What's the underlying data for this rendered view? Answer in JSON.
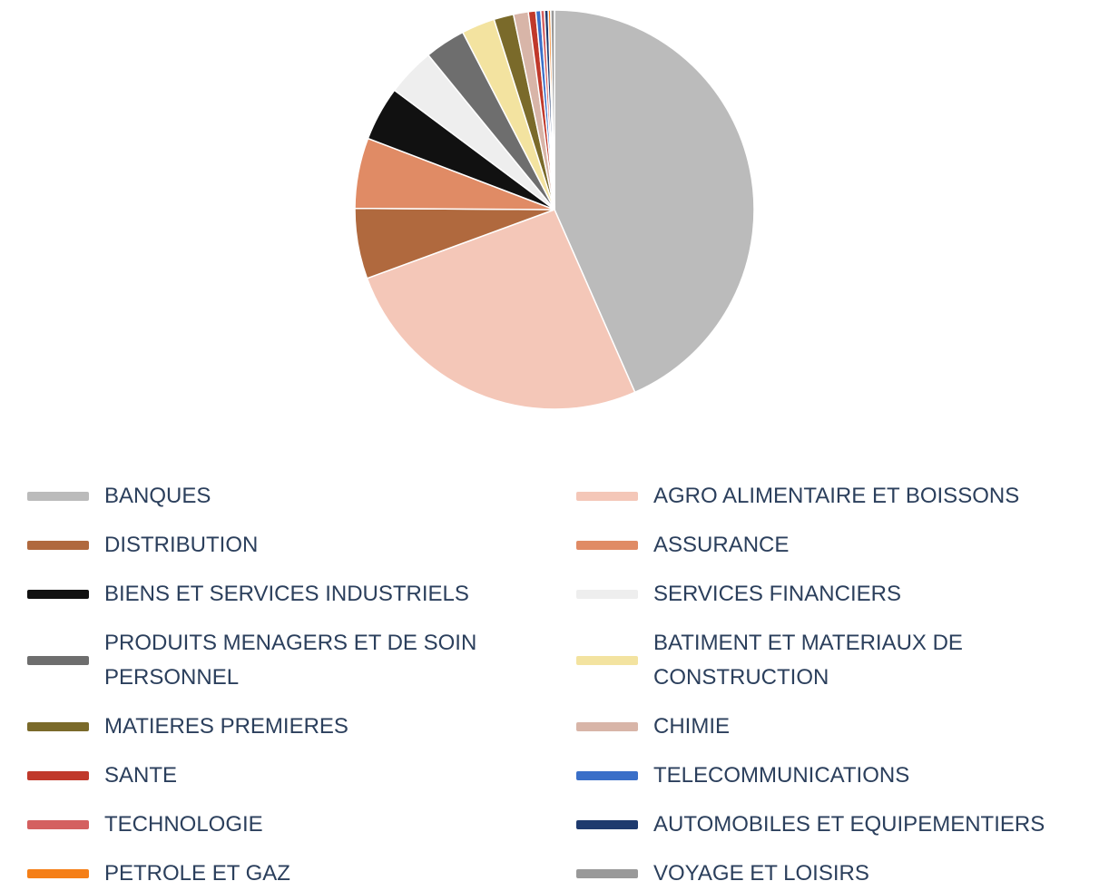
{
  "chart_data": {
    "type": "pie",
    "categories": [
      "BANQUES",
      "AGRO ALIMENTAIRE ET BOISSONS",
      "DISTRIBUTION",
      "ASSURANCE",
      "BIENS ET SERVICES INDUSTRIELS",
      "SERVICES FINANCIERS",
      "PRODUITS MENAGERS ET DE SOIN PERSONNEL",
      "BATIMENT ET MATERIAUX DE CONSTRUCTION",
      "MATIERES PREMIERES",
      "CHIMIE",
      "SANTE",
      "TELECOMMUNICATIONS",
      "TECHNOLOGIE",
      "AUTOMOBILES ET EQUIPEMENTIERS",
      "PETROLE ET GAZ",
      "VOYAGE ET LOISIRS"
    ],
    "values": [
      43.4,
      26,
      5.7,
      5.7,
      4.4,
      3.9,
      3.3,
      2.7,
      1.6,
      1.2,
      0.6,
      0.4,
      0.3,
      0.3,
      0.2,
      0.3
    ],
    "colors": [
      "#bbbbbb",
      "#f4c7b8",
      "#b0693e",
      "#e08b65",
      "#111111",
      "#eeeeee",
      "#6e6e6e",
      "#f3e3a0",
      "#7a6a2a",
      "#d8b5a8",
      "#c0392b",
      "#3a6fc8",
      "#d46060",
      "#1e3a6e",
      "#f57f17",
      "#999999"
    ]
  }
}
